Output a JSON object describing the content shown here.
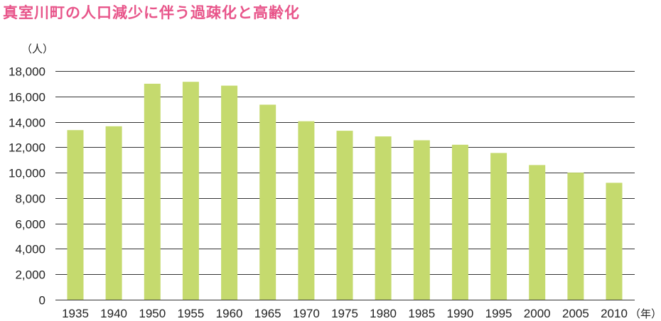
{
  "chart_data": {
    "type": "bar",
    "title": "真室川町の人口減少に伴う過疎化と高齢化",
    "ylabel": "（人）",
    "xlabel": "（年）",
    "ylim": [
      0,
      18000
    ],
    "yticks": [
      0,
      2000,
      4000,
      6000,
      8000,
      10000,
      12000,
      14000,
      16000,
      18000
    ],
    "ytick_labels": [
      "0",
      "2,000",
      "4,000",
      "6,000",
      "8,000",
      "10,000",
      "12,000",
      "14,000",
      "16,000",
      "18,000"
    ],
    "grid": true,
    "categories": [
      "1935",
      "1940",
      "1950",
      "1955",
      "1960",
      "1965",
      "1970",
      "1975",
      "1980",
      "1985",
      "1990",
      "1995",
      "2000",
      "2005",
      "2010"
    ],
    "values": [
      13350,
      13650,
      17000,
      17150,
      16850,
      15350,
      14050,
      13300,
      12850,
      12550,
      12200,
      11550,
      10600,
      10000,
      9200
    ],
    "bar_color": "#c5da6e",
    "grid_color": "#333333"
  }
}
